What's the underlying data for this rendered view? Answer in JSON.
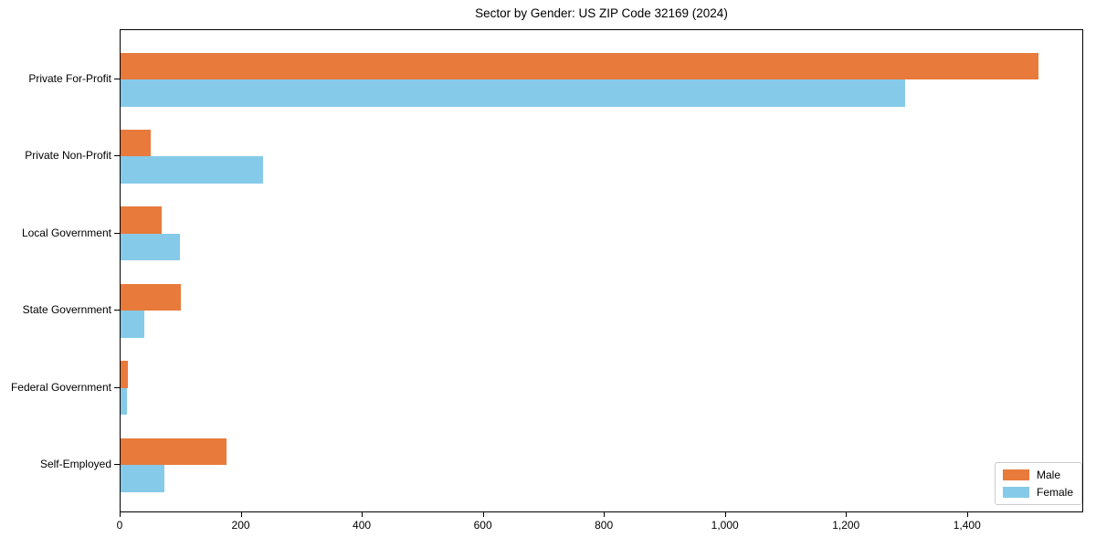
{
  "chart_data": {
    "type": "bar",
    "orientation": "horizontal",
    "title": "Sector by Gender: US ZIP Code 32169 (2024)",
    "xlabel": "",
    "ylabel": "",
    "categories": [
      "Private For-Profit",
      "Private Non-Profit",
      "Local Government",
      "State Government",
      "Federal Government",
      "Self-Employed"
    ],
    "series": [
      {
        "name": "Male",
        "color": "#E87A3C",
        "values": [
          1516,
          50,
          68,
          100,
          12,
          175
        ]
      },
      {
        "name": "Female",
        "color": "#85CAE8",
        "values": [
          1296,
          235,
          98,
          39,
          11,
          72
        ]
      }
    ],
    "xlim": [
      0,
      1592
    ],
    "xticks": [
      0,
      200,
      400,
      600,
      800,
      1000,
      1200,
      1400
    ],
    "xtick_labels": [
      "0",
      "200",
      "400",
      "600",
      "800",
      "1,000",
      "1,200",
      "1,400"
    ],
    "grid": false,
    "legend_position": "lower right"
  },
  "legend": {
    "items": [
      {
        "label": "Male",
        "color": "#E87A3C"
      },
      {
        "label": "Female",
        "color": "#85CAE8"
      }
    ]
  }
}
